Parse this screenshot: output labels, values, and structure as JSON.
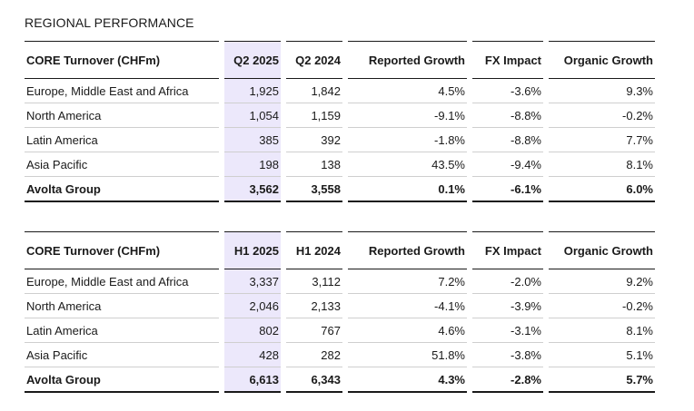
{
  "section_title": "REGIONAL PERFORMANCE",
  "tables": [
    {
      "headers": [
        "CORE Turnover (CHFm)",
        "Q2 2025",
        "Q2 2024",
        "Reported Growth",
        "FX Impact",
        "Organic Growth"
      ],
      "rows": [
        [
          "Europe, Middle East and Africa",
          "1,925",
          "1,842",
          "4.5%",
          "-3.6%",
          "9.3%"
        ],
        [
          "North America",
          "1,054",
          "1,159",
          "-9.1%",
          "-8.8%",
          "-0.2%"
        ],
        [
          "Latin America",
          "385",
          "392",
          "-1.8%",
          "-8.8%",
          "7.7%"
        ],
        [
          "Asia Pacific",
          "198",
          "138",
          "43.5%",
          "-9.4%",
          "8.1%"
        ]
      ],
      "total": [
        "Avolta Group",
        "3,562",
        "3,558",
        "0.1%",
        "-6.1%",
        "6.0%"
      ]
    },
    {
      "headers": [
        "CORE Turnover (CHFm)",
        "H1 2025",
        "H1 2024",
        "Reported Growth",
        "FX Impact",
        "Organic Growth"
      ],
      "rows": [
        [
          "Europe, Middle East and Africa",
          "3,337",
          "3,112",
          "7.2%",
          "-2.0%",
          "9.2%"
        ],
        [
          "North America",
          "2,046",
          "2,133",
          "-4.1%",
          "-3.9%",
          "-0.2%"
        ],
        [
          "Latin America",
          "802",
          "767",
          "4.6%",
          "-3.1%",
          "8.1%"
        ],
        [
          "Asia Pacific",
          "428",
          "282",
          "51.8%",
          "-3.8%",
          "5.1%"
        ]
      ],
      "total": [
        "Avolta Group",
        "6,613",
        "6,343",
        "4.3%",
        "-2.8%",
        "5.7%"
      ]
    }
  ],
  "colors": {
    "highlight_column": "#ece8fb",
    "rule": "#1a1a1a",
    "row_divider": "#cfcfcf"
  }
}
